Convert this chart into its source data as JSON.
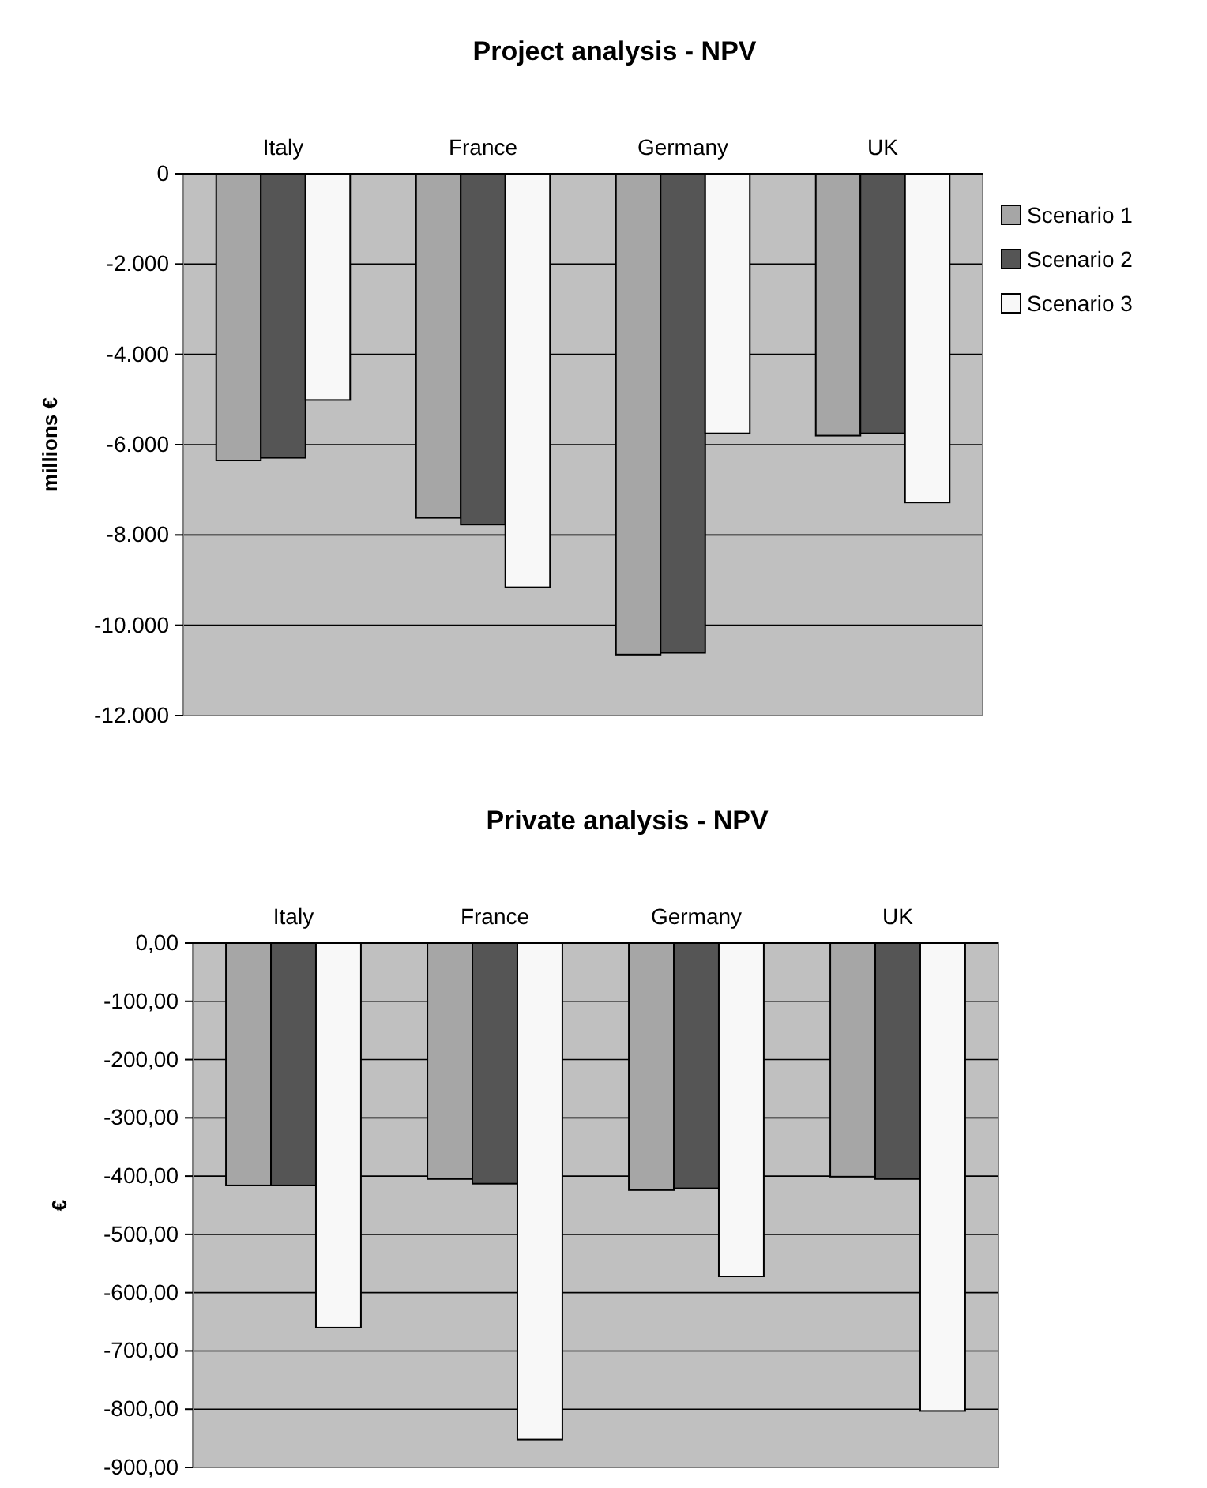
{
  "chart_data": [
    {
      "type": "bar",
      "title": "Project analysis - NPV",
      "ylabel": "millions €",
      "categories": [
        "Italy",
        "France",
        "Germany",
        "UK"
      ],
      "series": [
        {
          "name": "Scenario 1",
          "color": "#a6a6a6",
          "values": [
            -6350,
            -7620,
            -10650,
            -5800
          ]
        },
        {
          "name": "Scenario 2",
          "color": "#555555",
          "values": [
            -6290,
            -7770,
            -10610,
            -5750
          ]
        },
        {
          "name": "Scenario 3",
          "color": "#f8f8f8",
          "values": [
            -5010,
            -9160,
            -5750,
            -7280
          ]
        }
      ],
      "ylim": [
        -12000,
        0
      ],
      "yticks": [
        {
          "value": -12000,
          "label": "-12.000"
        },
        {
          "value": -10000,
          "label": "-10.000"
        },
        {
          "value": -8000,
          "label": "-8.000"
        },
        {
          "value": -6000,
          "label": "-6.000"
        },
        {
          "value": -4000,
          "label": "-4.000"
        },
        {
          "value": -2000,
          "label": "-2.000"
        },
        0
      ],
      "grid": "y",
      "legend": "right"
    },
    {
      "type": "bar",
      "title": "Private analysis - NPV",
      "ylabel": "€",
      "categories": [
        "Italy",
        "France",
        "Germany",
        "UK"
      ],
      "series": [
        {
          "color": "#a6a6a6",
          "values": [
            -416,
            -405,
            -424,
            -401
          ]
        },
        {
          "color": "#555555",
          "values": [
            -416,
            -413,
            -421,
            -405
          ]
        },
        {
          "color": "#f8f8f8",
          "values": [
            -660,
            -852,
            -572,
            -803
          ]
        }
      ],
      "ylim": [
        -900,
        0
      ],
      "yticks": [
        {
          "value": -900,
          "label": "-900,00"
        },
        {
          "value": -800,
          "label": "-800,00"
        },
        {
          "value": -700,
          "label": "-700,00"
        },
        {
          "value": -600,
          "label": "-600,00"
        },
        {
          "value": -500,
          "label": "-500,00"
        },
        {
          "value": -400,
          "label": "-400,00"
        },
        {
          "value": -300,
          "label": "-300,00"
        },
        {
          "value": -200,
          "label": "-200,00"
        },
        {
          "value": -100,
          "label": "-100,00"
        },
        {
          "value": 0,
          "label": "0,00"
        }
      ],
      "grid": "y",
      "legend": false
    }
  ]
}
